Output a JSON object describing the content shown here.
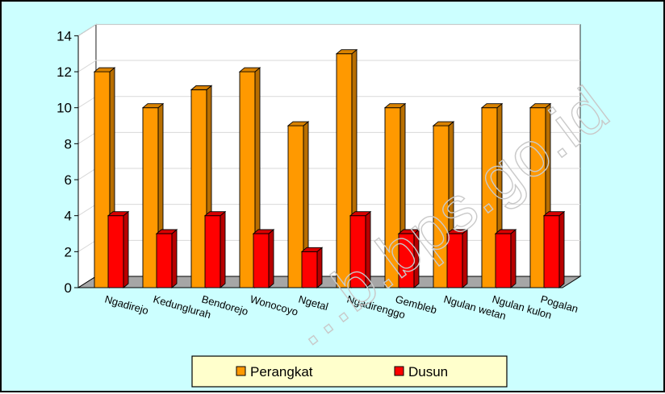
{
  "chart_data": {
    "type": "bar",
    "title": "",
    "xlabel": "",
    "ylabel": "",
    "ylim": [
      0,
      14
    ],
    "yticks": [
      0,
      2,
      4,
      6,
      8,
      10,
      12,
      14
    ],
    "grid": true,
    "legend_position": "bottom",
    "categories": [
      "Ngadirejo",
      "Kedunglurah",
      "Bendorejo",
      "Wonocoyo",
      "Ngetal",
      "Ngadirenggo",
      "Gembleb",
      "Ngulan wetan",
      "Ngulan kulon",
      "Pogalan"
    ],
    "series": [
      {
        "name": "Perangkat",
        "color": "#FF9900",
        "values": [
          12,
          10,
          11,
          12,
          9,
          13,
          10,
          9,
          10,
          10
        ]
      },
      {
        "name": "Dusun",
        "color": "#FF0000",
        "values": [
          4,
          3,
          4,
          3,
          2,
          4,
          3,
          3,
          3,
          4
        ]
      }
    ]
  },
  "watermark": "...b.bps.go.id",
  "colors": {
    "background": "#CCFFFF",
    "plot_wall": "#FFFFFF",
    "floor": "#A6A6A6",
    "legend_background": "#FFFFCC"
  }
}
